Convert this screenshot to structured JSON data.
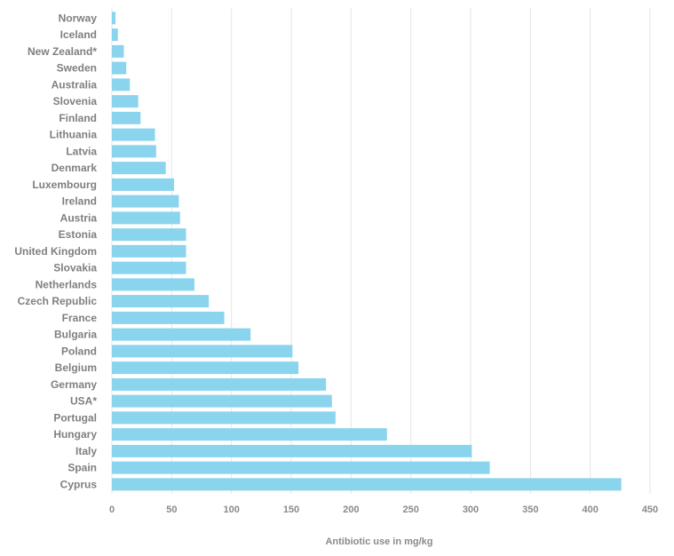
{
  "chart_data": {
    "type": "bar",
    "orientation": "horizontal",
    "categories": [
      "Norway",
      "Iceland",
      "New Zealand*",
      "Sweden",
      "Australia",
      "Slovenia",
      "Finland",
      "Lithuania",
      "Latvia",
      "Denmark",
      "Luxembourg",
      "Ireland",
      "Austria",
      "Estonia",
      "United Kingdom",
      "Slovakia",
      "Netherlands",
      "Czech Republic",
      "France",
      "Bulgaria",
      "Poland",
      "Belgium",
      "Germany",
      "USA*",
      "Portugal",
      "Hungary",
      "Italy",
      "Spain",
      "Cyprus"
    ],
    "values": [
      3,
      5,
      10,
      12,
      15,
      22,
      24,
      36,
      37,
      45,
      52,
      56,
      57,
      62,
      62,
      62,
      69,
      81,
      94,
      116,
      151,
      156,
      179,
      184,
      187,
      230,
      301,
      316,
      426
    ],
    "title": "",
    "xlabel": "Antibiotic use in mg/kg",
    "ylabel": "",
    "xlim": [
      0,
      450
    ],
    "xticks": [
      "0",
      "50",
      "100",
      "150",
      "200",
      "250",
      "300",
      "350",
      "400",
      "450"
    ],
    "grid": "vertical",
    "legend": "none",
    "bar_color": "#8ad4ee",
    "grid_color": "#e6e6e6",
    "label_color": "#7f7f7f"
  }
}
